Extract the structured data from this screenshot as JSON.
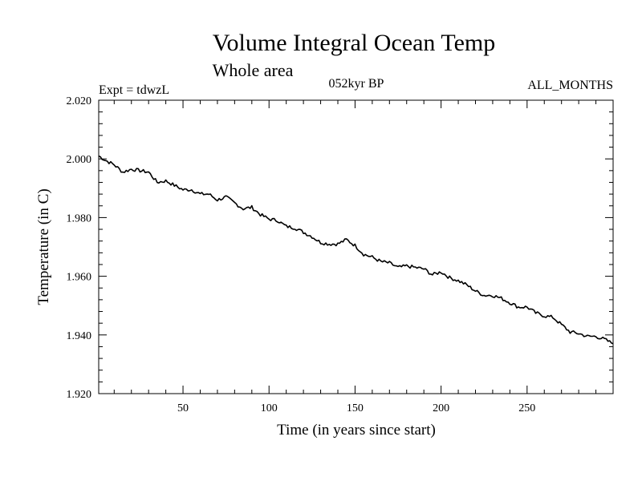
{
  "chart_data": {
    "type": "line",
    "title": "Volume Integral Ocean Temp",
    "subtitle": "Whole area",
    "header_left": "Expt = tdwzL",
    "header_center": "052kyr BP",
    "header_right": "ALL_MONTHS",
    "xlabel": "Time (in years since start)",
    "ylabel": "Temperature (in C)",
    "xlim": [
      1,
      300
    ],
    "ylim": [
      1.92,
      2.02
    ],
    "x_ticks": [
      "50",
      "100",
      "150",
      "200",
      "250"
    ],
    "y_ticks": [
      "1.920",
      "1.940",
      "1.960",
      "1.980",
      "2.000",
      "2.020"
    ],
    "grid": false,
    "series": [
      {
        "color": "#000000",
        "x": [
          1,
          5,
          10,
          15,
          20,
          25,
          30,
          35,
          40,
          45,
          50,
          55,
          60,
          65,
          70,
          75,
          80,
          85,
          90,
          95,
          100,
          105,
          110,
          115,
          120,
          125,
          130,
          135,
          140,
          145,
          150,
          155,
          160,
          165,
          170,
          175,
          180,
          185,
          190,
          195,
          200,
          205,
          210,
          215,
          220,
          225,
          230,
          235,
          240,
          245,
          250,
          255,
          260,
          265,
          270,
          275,
          280,
          285,
          290,
          295,
          300
        ],
        "values": [
          2.001,
          1.9995,
          1.998,
          1.9955,
          1.9965,
          1.996,
          1.9955,
          1.992,
          1.9925,
          1.991,
          1.9895,
          1.9895,
          1.988,
          1.988,
          1.986,
          1.987,
          1.985,
          1.983,
          1.9835,
          1.981,
          1.9795,
          1.979,
          1.977,
          1.9765,
          1.975,
          1.9735,
          1.9715,
          1.971,
          1.971,
          1.9725,
          1.9705,
          1.9675,
          1.9665,
          1.965,
          1.9645,
          1.963,
          1.9635,
          1.963,
          1.9625,
          1.9605,
          1.9615,
          1.9595,
          1.9585,
          1.957,
          1.955,
          1.9535,
          1.9535,
          1.9525,
          1.951,
          1.9495,
          1.9495,
          1.9475,
          1.9465,
          1.946,
          1.9435,
          1.941,
          1.9405,
          1.9395,
          1.9395,
          1.9385,
          1.937
        ]
      }
    ]
  }
}
